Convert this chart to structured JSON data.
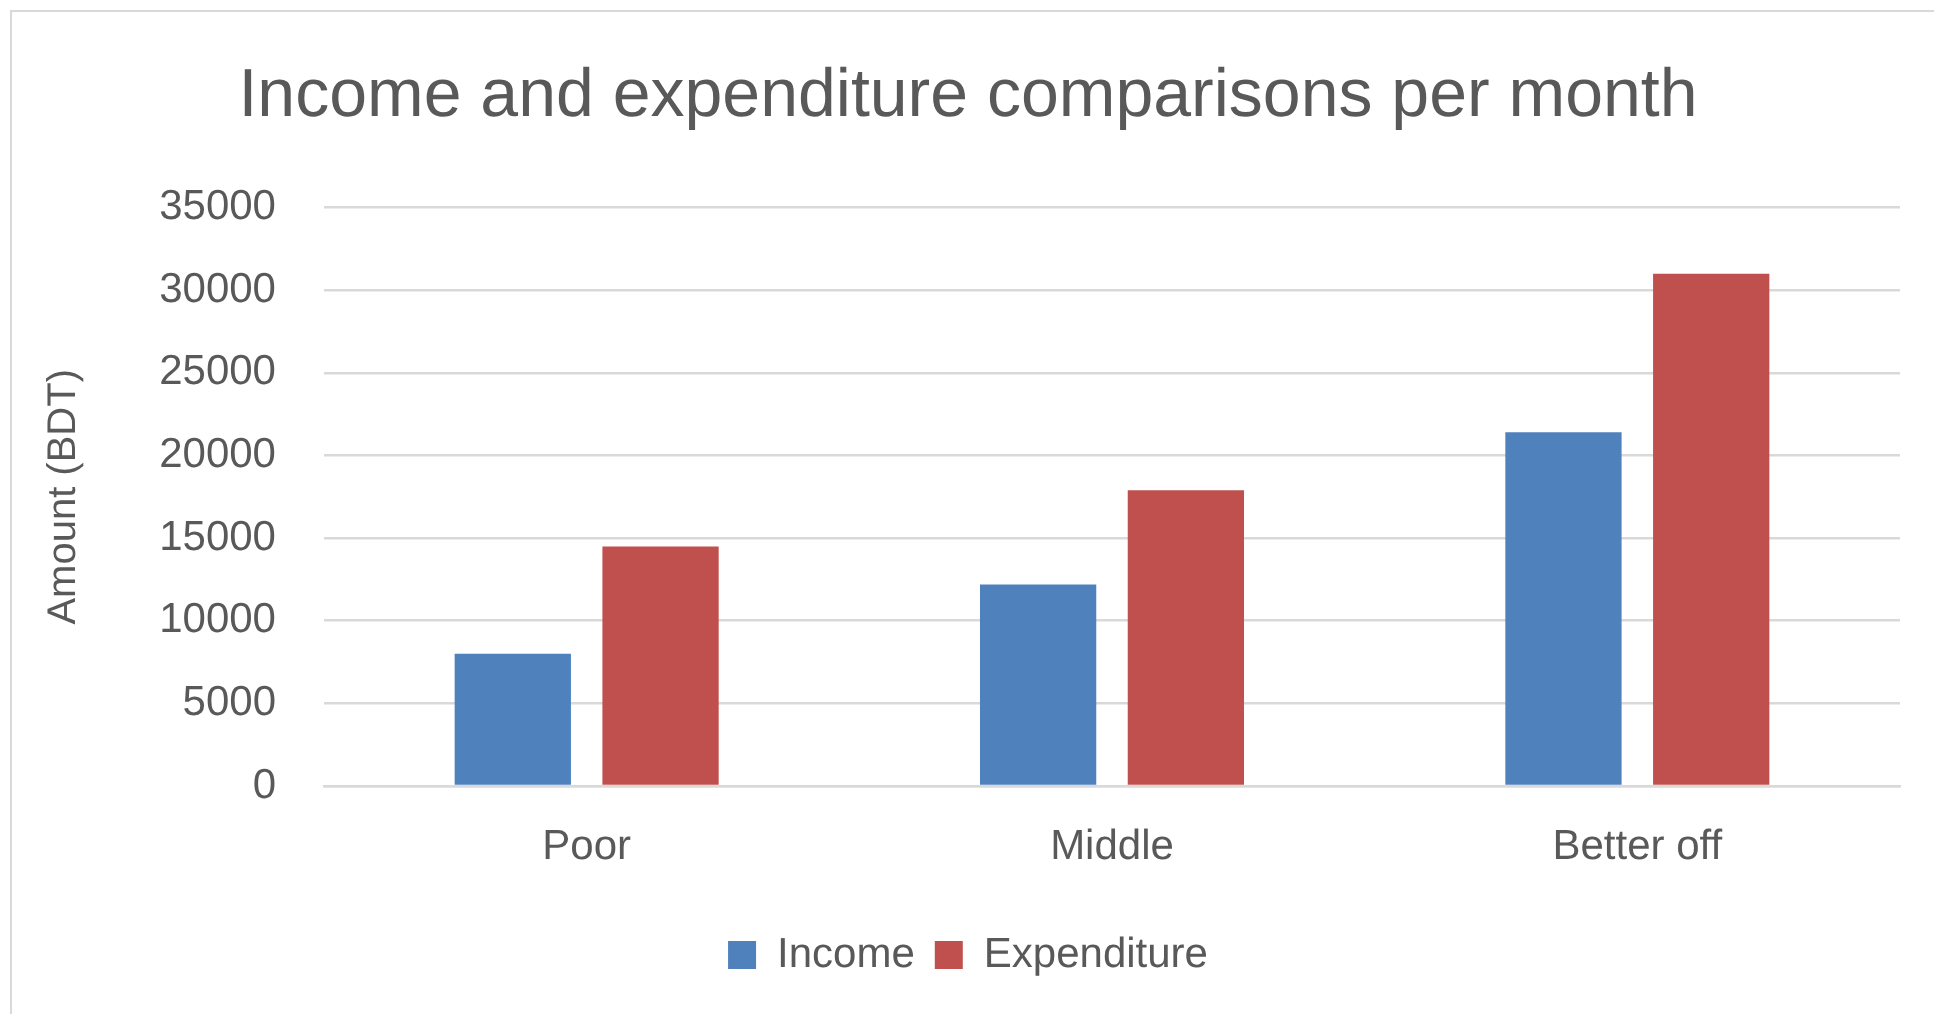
{
  "chart_data": {
    "type": "bar",
    "title": "Income and expenditure comparisons per month",
    "ylabel": "Amount (BDT)",
    "categories": [
      "Poor",
      "Middle",
      "Better off"
    ],
    "series": [
      {
        "name": "Income",
        "color": "#4f81bd",
        "values": [
          8000,
          12200,
          21400
        ]
      },
      {
        "name": "Expenditure",
        "color": "#c0504d",
        "values": [
          14500,
          17900,
          31000
        ]
      }
    ],
    "ylim": [
      0,
      35000
    ],
    "yticks": [
      0,
      5000,
      10000,
      15000,
      20000,
      25000,
      30000,
      35000
    ],
    "grid": "y",
    "legend": "bottom"
  }
}
